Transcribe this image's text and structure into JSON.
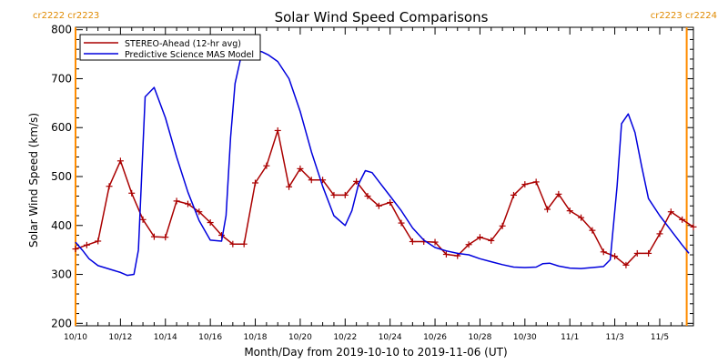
{
  "chart_data": {
    "type": "line",
    "title": "Solar Wind Speed Comparisons",
    "xlabel": "Month/Day from 2019-10-10 to 2019-11-06 (UT)",
    "ylabel": "Solar Wind Speed (km/s)",
    "xlim": [
      0,
      27.5
    ],
    "ylim": [
      195,
      805
    ],
    "x_ticks": [
      {
        "x": 0,
        "label": "10/10"
      },
      {
        "x": 2,
        "label": "10/12"
      },
      {
        "x": 4,
        "label": "10/14"
      },
      {
        "x": 6,
        "label": "10/16"
      },
      {
        "x": 8,
        "label": "10/18"
      },
      {
        "x": 10,
        "label": "10/20"
      },
      {
        "x": 12,
        "label": "10/22"
      },
      {
        "x": 14,
        "label": "10/24"
      },
      {
        "x": 16,
        "label": "10/26"
      },
      {
        "x": 18,
        "label": "10/28"
      },
      {
        "x": 20,
        "label": "10/30"
      },
      {
        "x": 22,
        "label": "11/1"
      },
      {
        "x": 24,
        "label": "11/3"
      },
      {
        "x": 26,
        "label": "11/5"
      }
    ],
    "y_ticks": [
      200,
      300,
      400,
      500,
      600,
      700,
      800
    ],
    "legend": "top-left",
    "carrington_markers": [
      {
        "x": 0,
        "left_label": "cr2222",
        "right_label": "cr2223",
        "side": "left"
      },
      {
        "x": 27.2,
        "left_label": "cr2223",
        "right_label": "cr2224",
        "side": "right"
      }
    ],
    "series": [
      {
        "name": "STEREO-Ahead (12-hr avg)",
        "color": "#aa0000",
        "marker": "plus",
        "x": [
          0,
          0.5,
          1,
          1.5,
          2,
          2.5,
          3,
          3.5,
          4,
          4.5,
          5,
          5.5,
          6,
          6.5,
          7,
          7.5,
          8,
          8.5,
          9,
          9.5,
          10,
          10.5,
          11,
          11.5,
          12,
          12.5,
          13,
          13.5,
          14,
          14.5,
          15,
          15.5,
          16,
          16.5,
          17,
          17.5,
          18,
          18.5,
          19,
          19.5,
          20,
          20.5,
          21,
          21.5,
          22,
          22.5,
          23,
          23.5,
          24,
          24.5,
          25,
          25.5,
          26,
          26.5,
          27,
          27.5
        ],
        "y": [
          352,
          360,
          368,
          480,
          532,
          466,
          412,
          377,
          376,
          450,
          444,
          428,
          406,
          380,
          362,
          362,
          487,
          522,
          594,
          479,
          516,
          493,
          493,
          462,
          462,
          490,
          460,
          440,
          447,
          405,
          367,
          367,
          366,
          341,
          338,
          361,
          376,
          369,
          399,
          462,
          484,
          489,
          433,
          464,
          430,
          416,
          390,
          346,
          337,
          319,
          343,
          343,
          383,
          428,
          412,
          397
        ]
      },
      {
        "name": "Predictive Science MAS Model",
        "color": "#0000dd",
        "marker": "none",
        "x": [
          0,
          0.3,
          0.6,
          1,
          1.5,
          2,
          2.3,
          2.6,
          2.8,
          3.1,
          3.5,
          4,
          4.5,
          5,
          5.5,
          6,
          6.5,
          6.7,
          6.9,
          7.1,
          7.4,
          7.7,
          8,
          8.3,
          8.6,
          9,
          9.5,
          10,
          10.5,
          11,
          11.5,
          12,
          12.3,
          12.6,
          12.9,
          13.2,
          13.5,
          14,
          14.5,
          15,
          15.5,
          16,
          16.5,
          17,
          17.5,
          18,
          18.5,
          19,
          19.5,
          20,
          20.5,
          20.8,
          21.1,
          21.5,
          22,
          22.5,
          23,
          23.5,
          23.8,
          24.1,
          24.3,
          24.6,
          24.9,
          25.2,
          25.5,
          26,
          26.5,
          27,
          27.3
        ],
        "y": [
          366,
          350,
          332,
          318,
          311,
          304,
          298,
          300,
          350,
          663,
          682,
          620,
          540,
          468,
          410,
          370,
          368,
          420,
          580,
          690,
          752,
          758,
          757,
          755,
          748,
          735,
          700,
          633,
          550,
          480,
          420,
          400,
          430,
          485,
          512,
          508,
          490,
          460,
          430,
          395,
          370,
          355,
          348,
          343,
          340,
          332,
          326,
          320,
          315,
          314,
          315,
          322,
          323,
          317,
          313,
          312,
          314,
          316,
          330,
          480,
          608,
          628,
          590,
          520,
          455,
          420,
          390,
          360,
          343
        ]
      }
    ]
  }
}
